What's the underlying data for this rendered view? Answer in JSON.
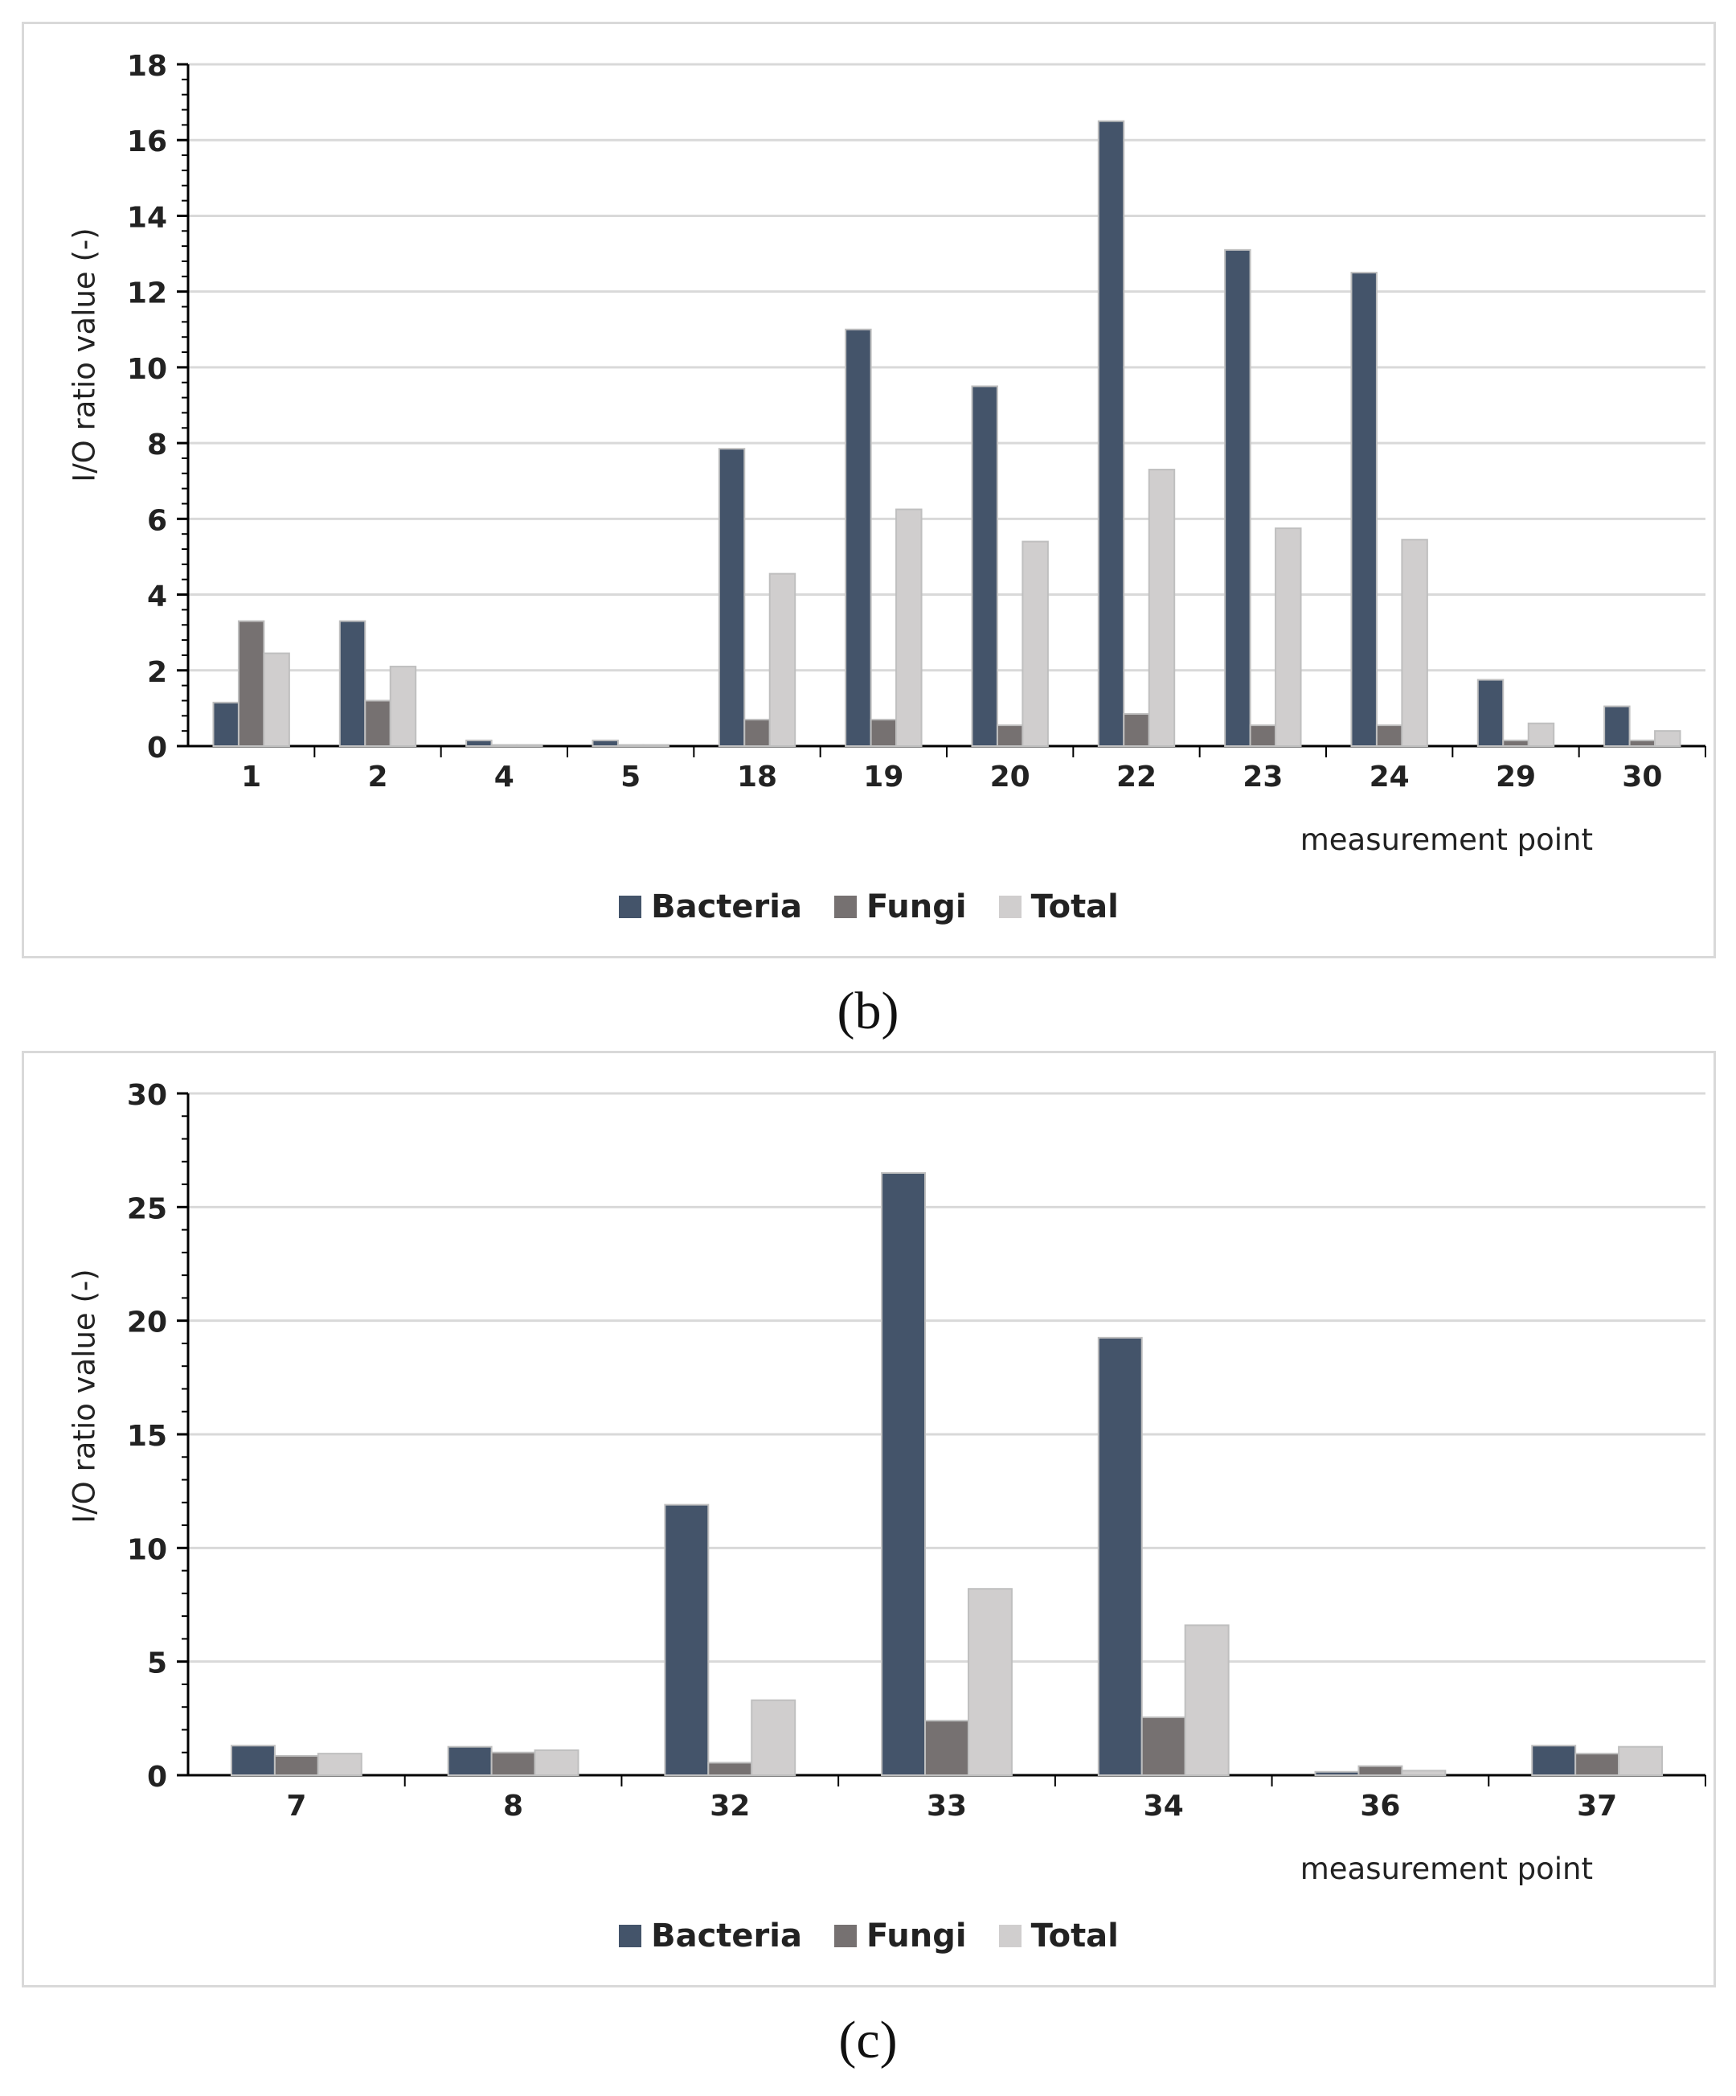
{
  "colors": {
    "bacteria": "#44546a",
    "fungi": "#767171",
    "total": "#d0cece",
    "grid": "#d9d9d9",
    "axis": "#000000"
  },
  "chart_data": [
    {
      "type": "bar",
      "panel_label": "(b)",
      "categories": [
        "1",
        "2",
        "4",
        "5",
        "18",
        "19",
        "20",
        "22",
        "23",
        "24",
        "29",
        "30"
      ],
      "series": [
        {
          "name": "Bacteria",
          "values": [
            1.15,
            3.3,
            0.15,
            0.15,
            7.85,
            11.0,
            9.5,
            16.5,
            13.1,
            12.5,
            1.75,
            1.05
          ]
        },
        {
          "name": "Fungi",
          "values": [
            3.3,
            1.2,
            0.03,
            0.03,
            0.7,
            0.7,
            0.55,
            0.85,
            0.55,
            0.55,
            0.15,
            0.15
          ]
        },
        {
          "name": "Total",
          "values": [
            2.45,
            2.1,
            0.03,
            0.03,
            4.55,
            6.25,
            5.4,
            7.3,
            5.75,
            5.45,
            0.6,
            0.4
          ]
        }
      ],
      "title": "",
      "xlabel": "measurement point",
      "ylabel": "I/O ratio value (-)",
      "ylim": [
        0,
        18
      ],
      "yticks": [
        0,
        2,
        4,
        6,
        8,
        10,
        12,
        14,
        16,
        18
      ],
      "grid": true,
      "legend_position": "bottom"
    },
    {
      "type": "bar",
      "panel_label": "(c)",
      "categories": [
        "7",
        "8",
        "32",
        "33",
        "34",
        "36",
        "37"
      ],
      "series": [
        {
          "name": "Bacteria",
          "values": [
            1.3,
            1.25,
            11.9,
            26.5,
            19.25,
            0.15,
            1.3
          ]
        },
        {
          "name": "Fungi",
          "values": [
            0.85,
            1.0,
            0.55,
            2.4,
            2.55,
            0.4,
            0.95
          ]
        },
        {
          "name": "Total",
          "values": [
            0.95,
            1.1,
            3.3,
            8.2,
            6.6,
            0.2,
            1.25
          ]
        }
      ],
      "title": "",
      "xlabel": "measurement point",
      "ylabel": "I/O ratio value (-)",
      "ylim": [
        0,
        30
      ],
      "yticks": [
        0,
        5,
        10,
        15,
        20,
        25,
        30
      ],
      "grid": true,
      "legend_position": "bottom"
    }
  ]
}
